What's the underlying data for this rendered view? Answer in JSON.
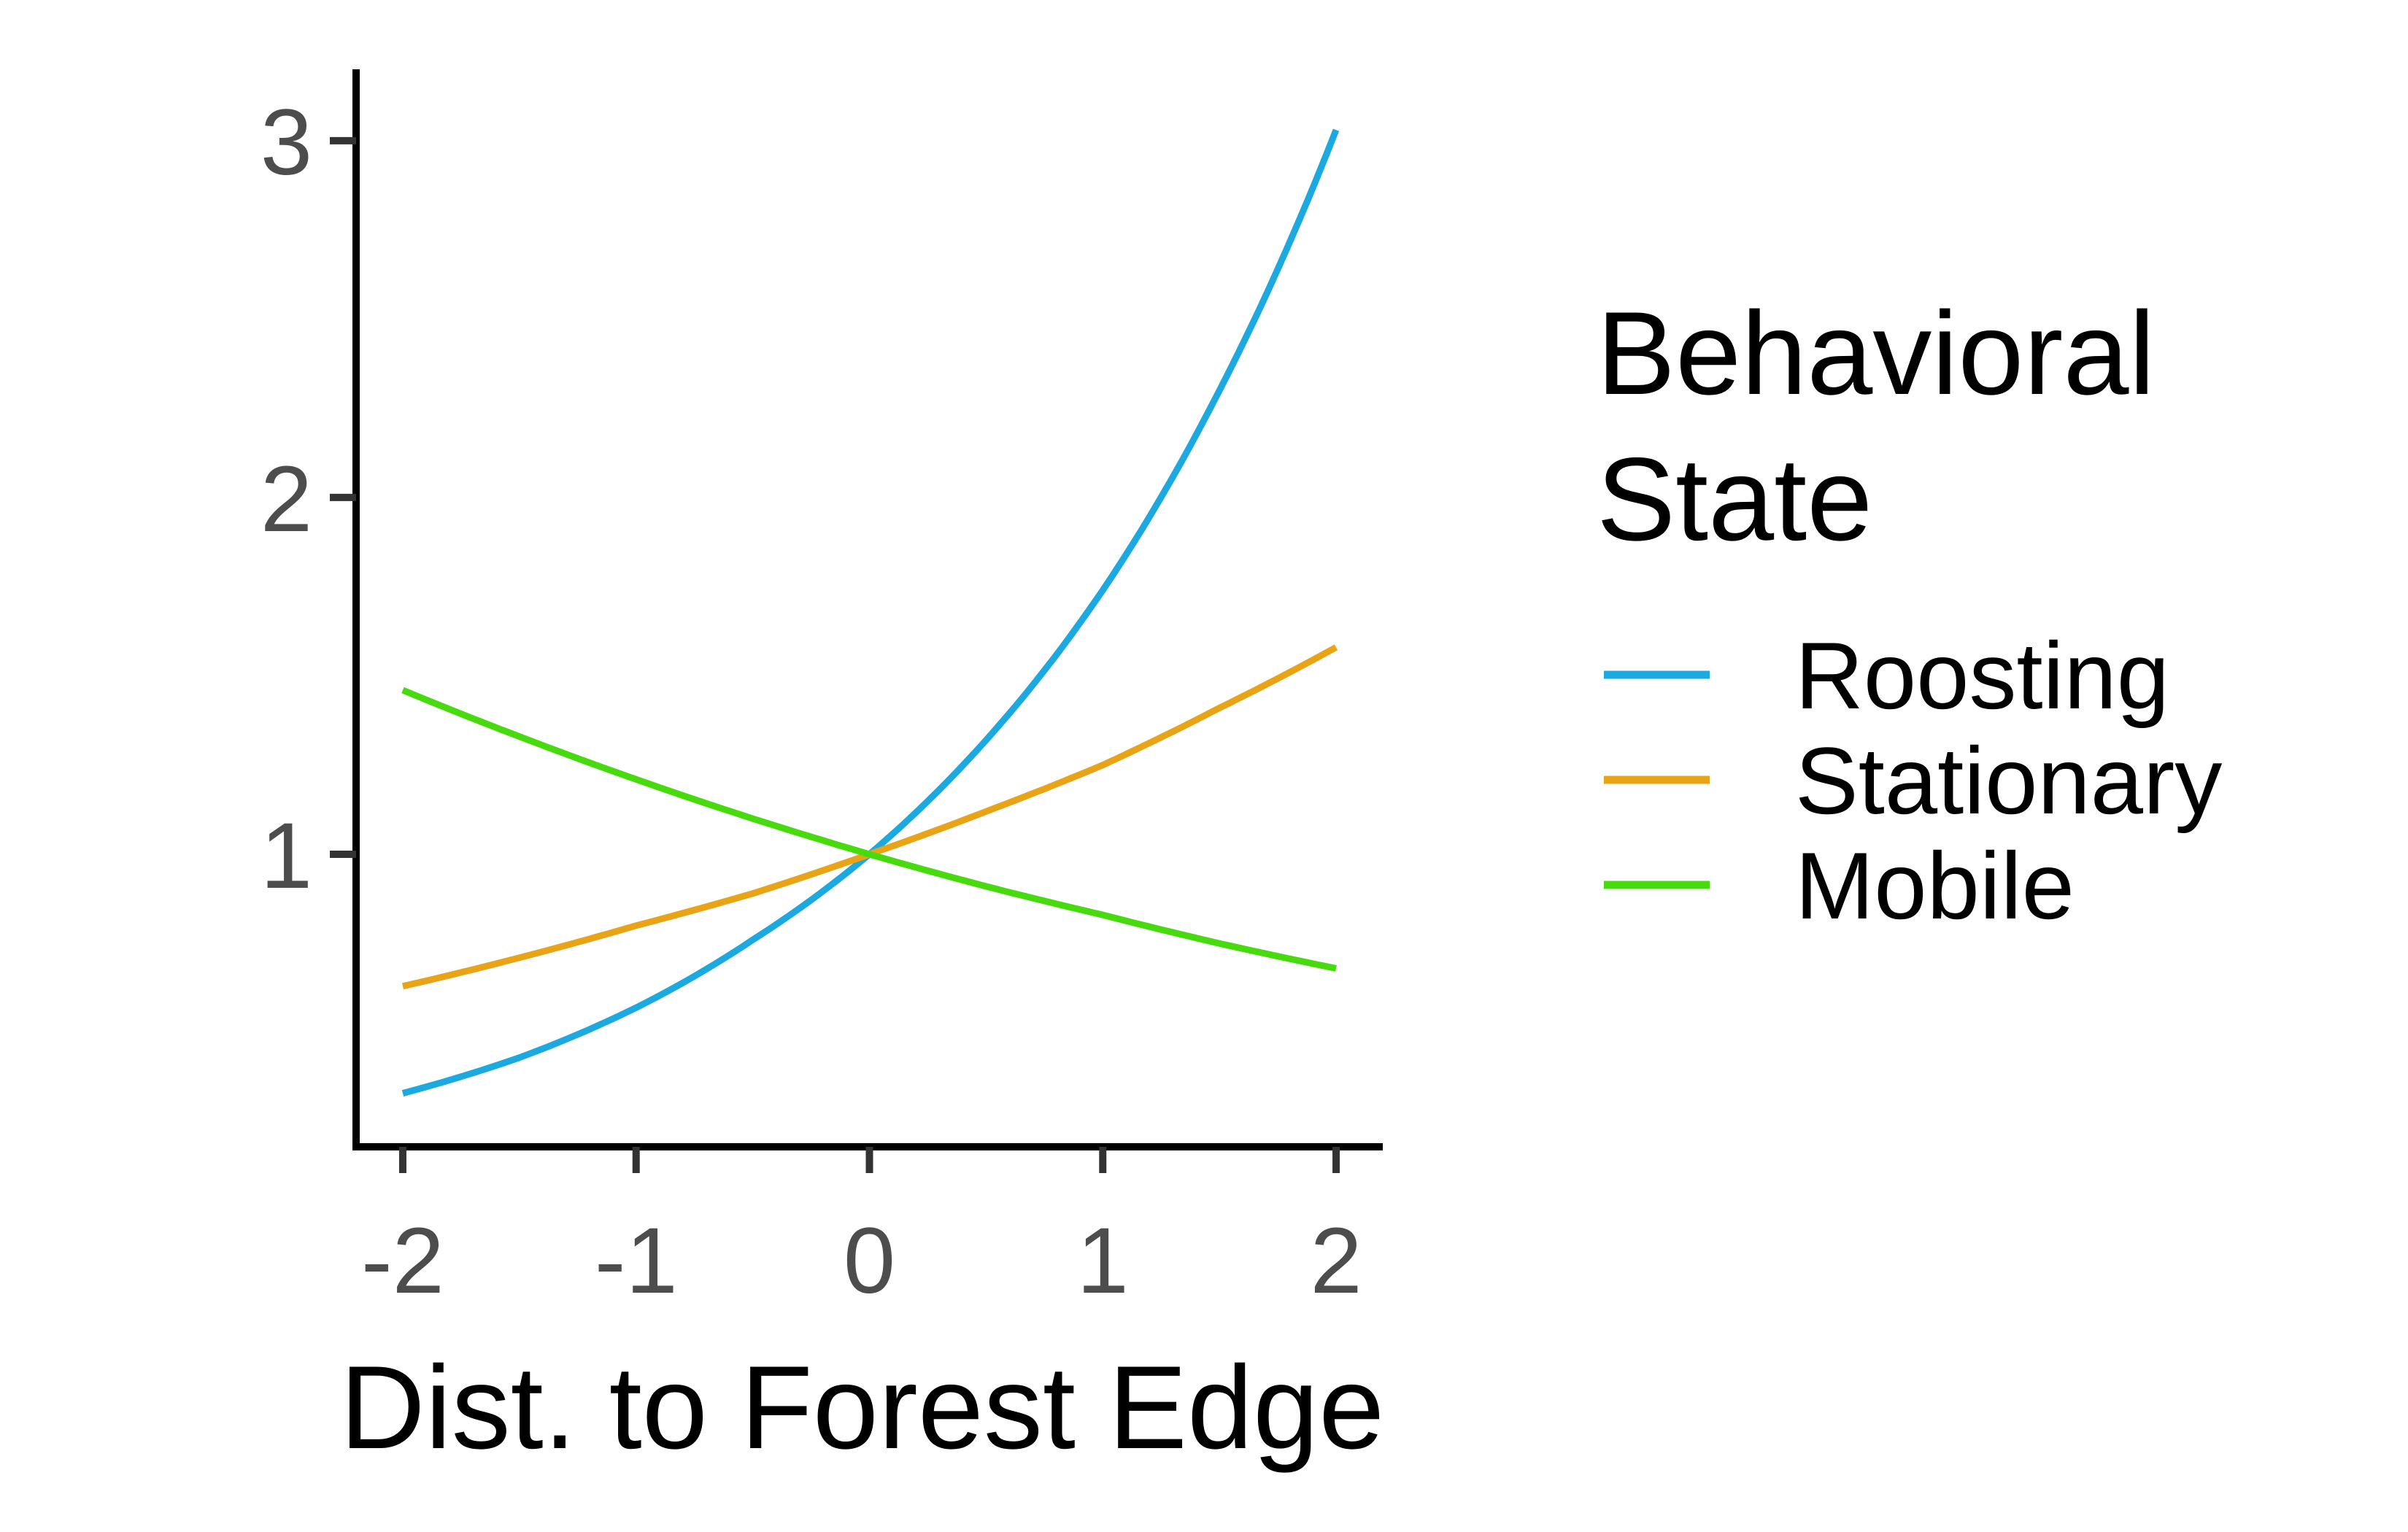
{
  "chart_data": {
    "type": "line",
    "title": "",
    "xlabel": "Dist. to Forest Edge",
    "ylabel": "",
    "xlim": [
      -2.2,
      2.2
    ],
    "ylim": [
      0.18,
      3.2
    ],
    "x_ticks": [
      -2,
      -1,
      0,
      1,
      2
    ],
    "x_tick_labels": [
      "-2",
      "-1",
      "0",
      "1",
      "2"
    ],
    "y_ticks": [
      1,
      2,
      3
    ],
    "y_tick_labels": [
      "1",
      "2",
      "3"
    ],
    "grid": false,
    "legend": {
      "title_lines": [
        "Behavioral",
        "State"
      ],
      "placement": "right"
    },
    "series": [
      {
        "name": "Roosting",
        "color": "#1ba9e0",
        "x": [
          -2,
          -1.5,
          -1,
          -0.5,
          0,
          0.5,
          1,
          1.5,
          2
        ],
        "y": [
          0.33,
          0.43,
          0.57,
          0.76,
          1.0,
          1.32,
          1.74,
          2.3,
          3.03
        ]
      },
      {
        "name": "Stationary",
        "color": "#e8a416",
        "x": [
          -2,
          -1.5,
          -1,
          -0.5,
          0,
          0.5,
          1,
          1.5,
          2
        ],
        "y": [
          0.63,
          0.71,
          0.8,
          0.89,
          1.0,
          1.12,
          1.25,
          1.41,
          1.58
        ]
      },
      {
        "name": "Mobile",
        "color": "#47db0f",
        "x": [
          -2,
          -1.5,
          -1,
          -0.5,
          0,
          0.5,
          1,
          1.5,
          2
        ],
        "y": [
          1.46,
          1.33,
          1.21,
          1.1,
          1.0,
          0.91,
          0.83,
          0.75,
          0.68
        ]
      }
    ]
  }
}
